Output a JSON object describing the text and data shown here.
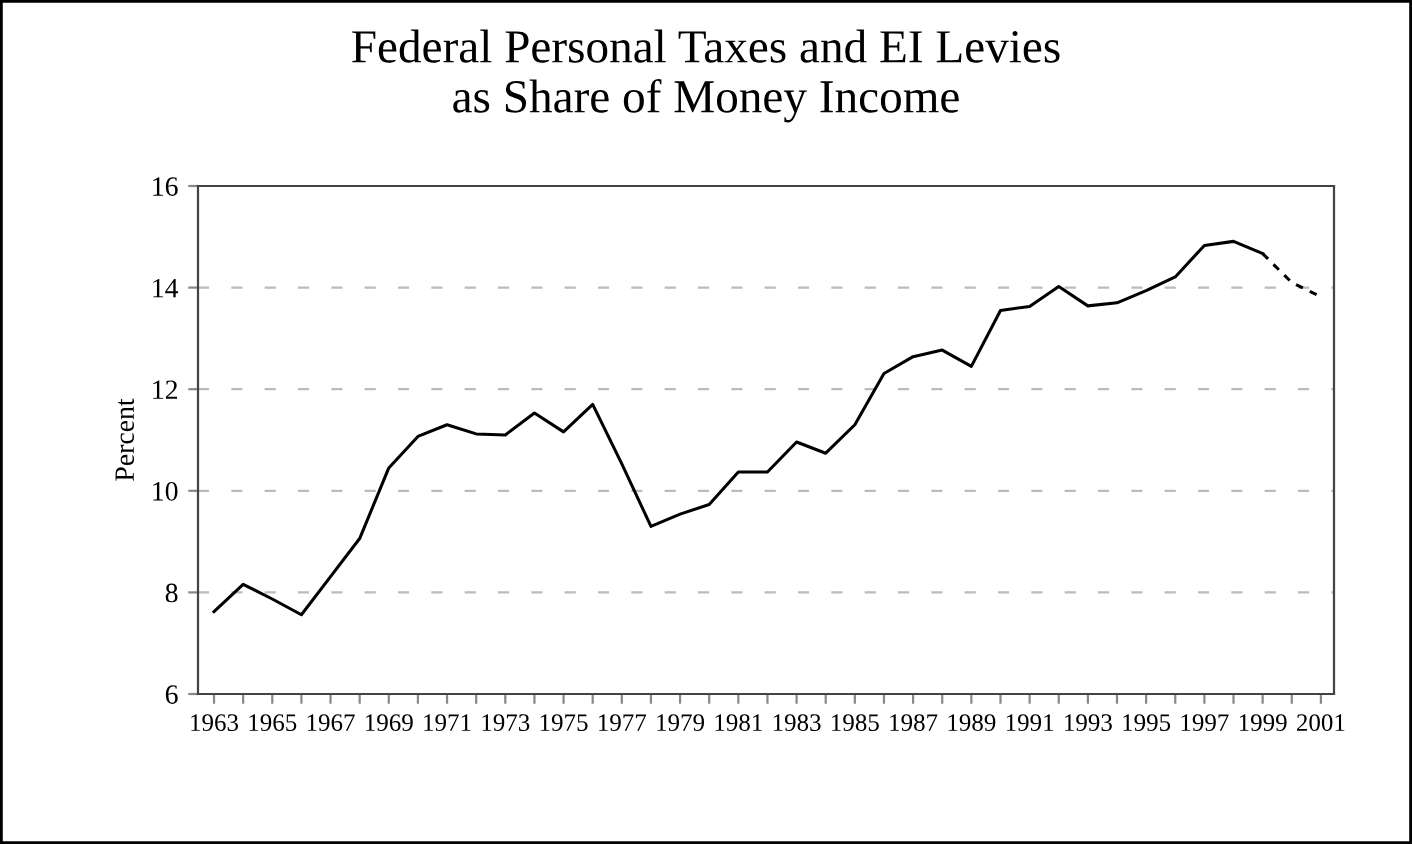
{
  "chart_data": {
    "type": "line",
    "title": "Federal Personal Taxes and EI Levies\nas Share of Money Income",
    "ylabel": "Percent",
    "series": [
      {
        "color": "#000000",
        "line_style": "solid",
        "x": [
          1963,
          1964,
          1965,
          1966,
          1967,
          1968,
          1969,
          1970,
          1971,
          1972,
          1973,
          1974,
          1975,
          1976,
          1977,
          1978,
          1979,
          1980,
          1981,
          1982,
          1983,
          1984,
          1985,
          1986,
          1987,
          1988,
          1989,
          1990,
          1991,
          1992,
          1993,
          1994,
          1995,
          1996,
          1997,
          1998,
          1999
        ],
        "values": [
          7.62,
          8.16,
          7.87,
          7.56,
          8.31,
          9.06,
          10.45,
          11.07,
          11.3,
          11.12,
          11.1,
          11.53,
          11.16,
          11.7,
          10.53,
          9.3,
          9.54,
          9.73,
          10.37,
          10.37,
          10.96,
          10.74,
          11.3,
          12.31,
          12.64,
          12.77,
          12.45,
          13.55,
          13.63,
          14.02,
          13.64,
          13.7,
          13.94,
          14.21,
          14.83,
          14.91,
          14.67
        ]
      },
      {
        "color": "#000000",
        "line_style": "dashed",
        "x": [
          1999,
          2000,
          2001
        ],
        "values": [
          14.67,
          14.1,
          13.82
        ]
      }
    ],
    "xlim": [
      1962.45,
      2001.45
    ],
    "xticks": [
      {
        "value": 1963,
        "label": "1963"
      },
      {
        "value": 1964,
        "label": null
      },
      {
        "value": 1965,
        "label": "1965"
      },
      {
        "value": 1966,
        "label": null
      },
      {
        "value": 1967,
        "label": "1967"
      },
      {
        "value": 1968,
        "label": null
      },
      {
        "value": 1969,
        "label": "1969"
      },
      {
        "value": 1970,
        "label": null
      },
      {
        "value": 1971,
        "label": "1971"
      },
      {
        "value": 1972,
        "label": null
      },
      {
        "value": 1973,
        "label": "1973"
      },
      {
        "value": 1974,
        "label": null
      },
      {
        "value": 1975,
        "label": "1975"
      },
      {
        "value": 1976,
        "label": null
      },
      {
        "value": 1977,
        "label": "1977"
      },
      {
        "value": 1978,
        "label": null
      },
      {
        "value": 1979,
        "label": "1979"
      },
      {
        "value": 1980,
        "label": null
      },
      {
        "value": 1981,
        "label": "1981"
      },
      {
        "value": 1982,
        "label": null
      },
      {
        "value": 1983,
        "label": "1983"
      },
      {
        "value": 1984,
        "label": null
      },
      {
        "value": 1985,
        "label": "1985"
      },
      {
        "value": 1986,
        "label": null
      },
      {
        "value": 1987,
        "label": "1987"
      },
      {
        "value": 1988,
        "label": null
      },
      {
        "value": 1989,
        "label": "1989"
      },
      {
        "value": 1990,
        "label": null
      },
      {
        "value": 1991,
        "label": "1991"
      },
      {
        "value": 1992,
        "label": null
      },
      {
        "value": 1993,
        "label": "1993"
      },
      {
        "value": 1994,
        "label": null
      },
      {
        "value": 1995,
        "label": "1995"
      },
      {
        "value": 1996,
        "label": null
      },
      {
        "value": 1997,
        "label": "1997"
      },
      {
        "value": 1998,
        "label": null
      },
      {
        "value": 1999,
        "label": "1999"
      },
      {
        "value": 2000,
        "label": null
      },
      {
        "value": 2001,
        "label": "2001"
      }
    ],
    "ylim": [
      6,
      16
    ],
    "yticks": [
      6,
      8,
      10,
      12,
      14,
      16
    ],
    "grid": "y",
    "legend": false,
    "marker": "none"
  }
}
